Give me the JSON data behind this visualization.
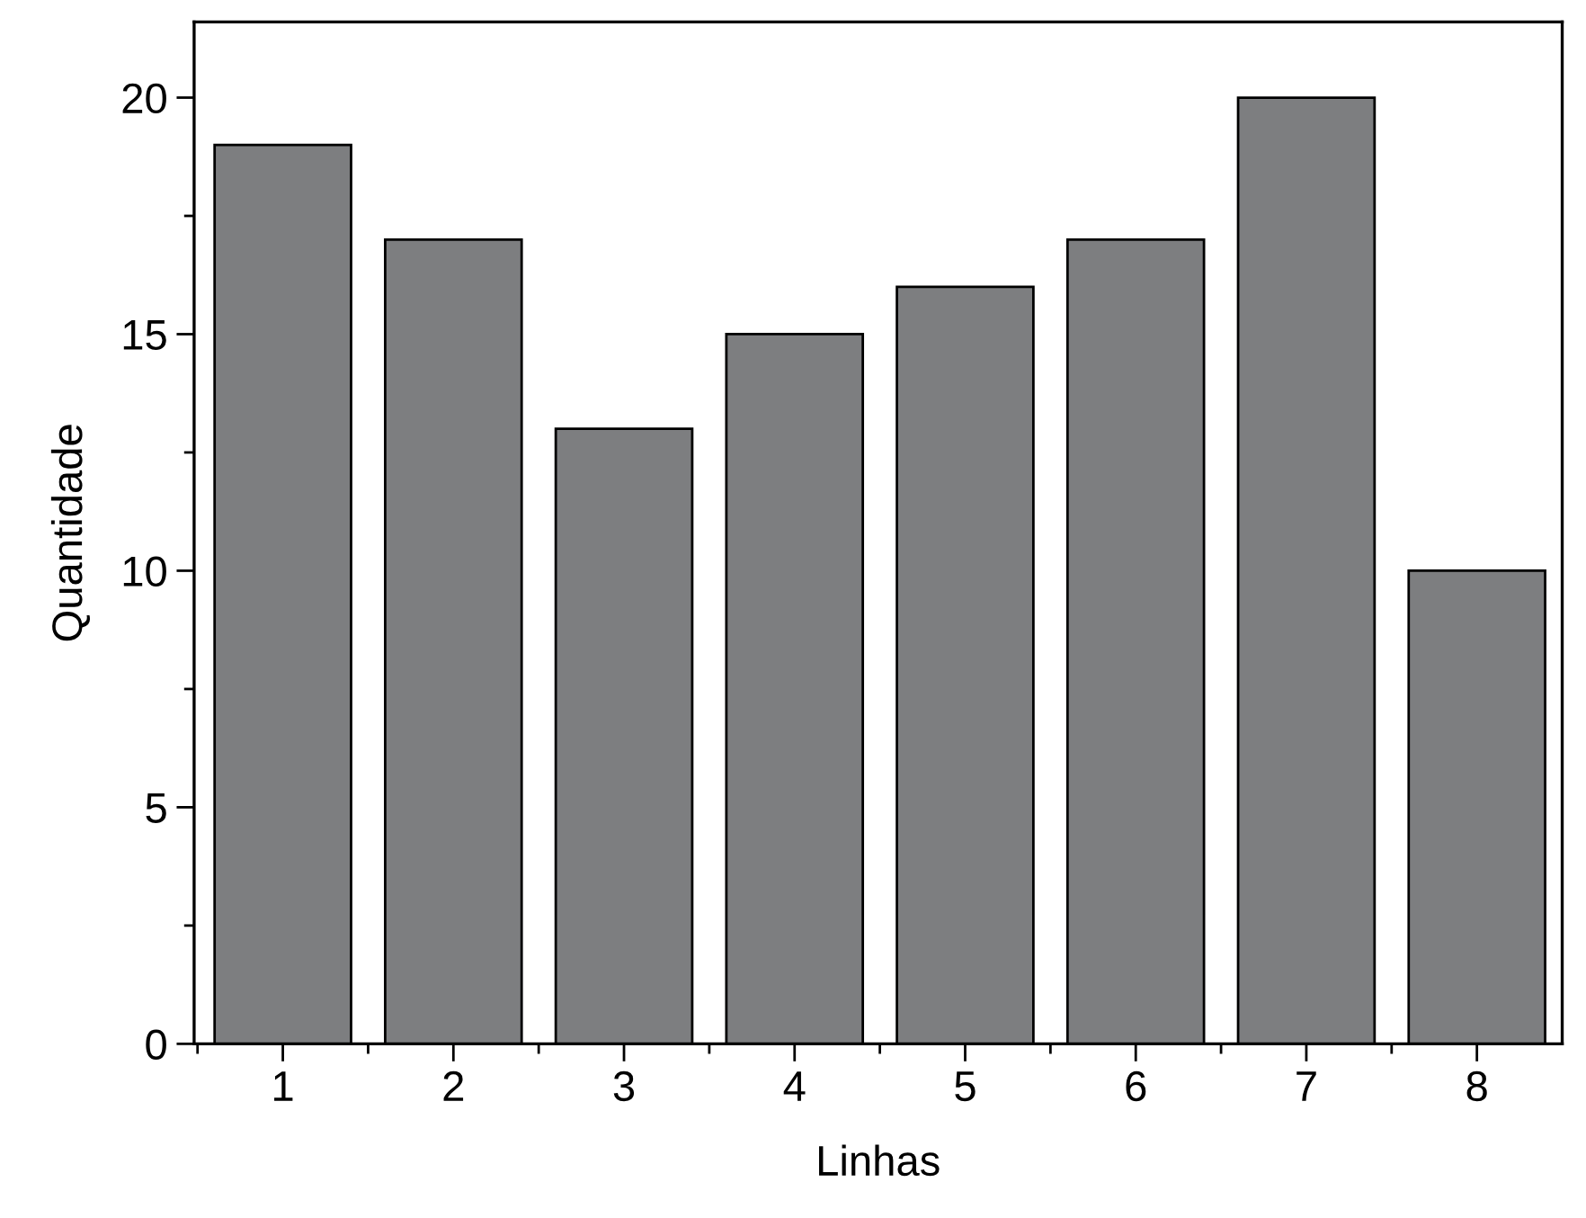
{
  "chart_data": {
    "type": "bar",
    "xlabel": "Linhas",
    "ylabel": "Quantidade",
    "categories": [
      "1",
      "2",
      "3",
      "4",
      "5",
      "6",
      "7",
      "8"
    ],
    "values": [
      19,
      17,
      13,
      15,
      16,
      17,
      20,
      10
    ],
    "color": "#7d7e80",
    "ylim": [
      0,
      21.6
    ],
    "yticks": [
      0,
      5,
      10,
      15,
      20
    ],
    "grid": false,
    "legend": false
  }
}
